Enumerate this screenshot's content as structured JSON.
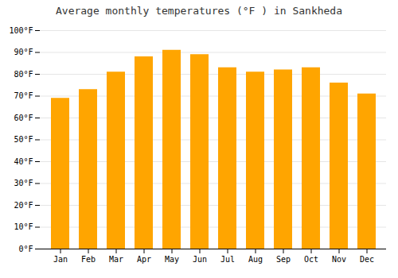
{
  "chart_data": {
    "type": "bar",
    "title": "Average monthly temperatures (°F ) in Sankheda",
    "categories": [
      "Jan",
      "Feb",
      "Mar",
      "Apr",
      "May",
      "Jun",
      "Jul",
      "Aug",
      "Sep",
      "Oct",
      "Nov",
      "Dec"
    ],
    "values": [
      69,
      73,
      81,
      88,
      91,
      89,
      83,
      81,
      82,
      83,
      76,
      71
    ],
    "color": "#FFA500",
    "ylim": [
      0,
      100
    ],
    "yticks": [
      {
        "value": 0,
        "label": "0°F"
      },
      {
        "value": 10,
        "label": "10°F"
      },
      {
        "value": 20,
        "label": "20°F"
      },
      {
        "value": 30,
        "label": "30°F"
      },
      {
        "value": 40,
        "label": "40°F"
      },
      {
        "value": 50,
        "label": "50°F"
      },
      {
        "value": 60,
        "label": "60°F"
      },
      {
        "value": 70,
        "label": "70°F"
      },
      {
        "value": 80,
        "label": "80°F"
      },
      {
        "value": 90,
        "label": "90°F"
      },
      {
        "value": 100,
        "label": "100°F"
      }
    ],
    "grid": true
  }
}
